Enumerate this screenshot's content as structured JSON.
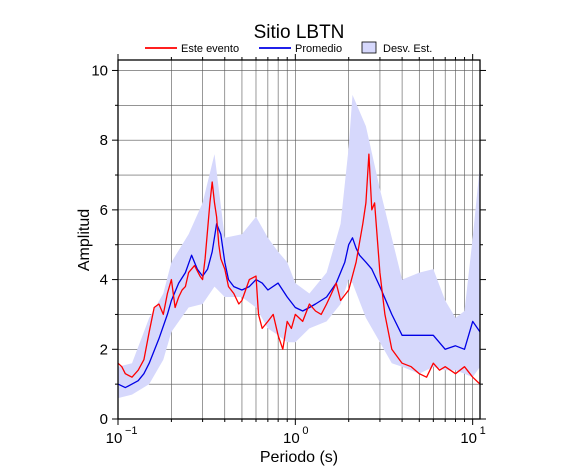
{
  "chart_data": {
    "type": "line",
    "title": "Sitio LBTN",
    "xlabel": "Periodo (s)",
    "ylabel": "Amplitud",
    "xscale": "log",
    "xlim": [
      0.1,
      11
    ],
    "ylim": [
      0,
      10.3
    ],
    "grid": true,
    "legend_position": "top",
    "x_ticks": [
      {
        "value": 0.1,
        "mantissa": "10",
        "exp": "−1"
      },
      {
        "value": 1,
        "mantissa": "10",
        "exp": "0"
      },
      {
        "value": 10,
        "mantissa": "10",
        "exp": "1"
      }
    ],
    "y_ticks": [
      {
        "value": 0,
        "label": "0"
      },
      {
        "value": 2,
        "label": "2"
      },
      {
        "value": 4,
        "label": "4"
      },
      {
        "value": 6,
        "label": "6"
      },
      {
        "value": 8,
        "label": "8"
      },
      {
        "value": 10,
        "label": "10"
      }
    ],
    "legend": [
      {
        "label": "Este evento",
        "kind": "line",
        "color": "#ff0000"
      },
      {
        "label": "Promedio",
        "kind": "line",
        "color": "#0000e6"
      },
      {
        "label": "Desv. Est.",
        "kind": "band",
        "color": "#d6d8fc"
      }
    ],
    "band": {
      "name": "Desv. Est.",
      "color": "#d6d8fc",
      "x": [
        0.1,
        0.12,
        0.15,
        0.18,
        0.2,
        0.25,
        0.3,
        0.35,
        0.4,
        0.5,
        0.6,
        0.7,
        0.8,
        0.9,
        1.0,
        1.2,
        1.5,
        1.8,
        2.0,
        2.1,
        2.5,
        3.0,
        3.5,
        4.0,
        5.0,
        6.0,
        7.0,
        8.0,
        9.0,
        10.0,
        11.0
      ],
      "upper": [
        1.5,
        1.6,
        2.9,
        3.6,
        4.5,
        5.3,
        6.2,
        7.6,
        5.2,
        5.3,
        5.8,
        5.2,
        4.8,
        4.5,
        3.9,
        3.6,
        4.2,
        5.6,
        7.8,
        9.3,
        8.4,
        6.6,
        5.2,
        4.0,
        4.2,
        4.3,
        3.4,
        2.9,
        3.1,
        5.2,
        7.3
      ],
      "lower": [
        0.6,
        0.7,
        1.0,
        1.7,
        2.5,
        3.2,
        3.3,
        3.8,
        3.5,
        3.5,
        3.2,
        2.6,
        2.4,
        2.2,
        2.2,
        2.6,
        2.8,
        3.3,
        4.0,
        3.9,
        2.9,
        2.2,
        1.6,
        1.5,
        1.3,
        1.5,
        1.4,
        1.4,
        1.3,
        1.2,
        1.5
      ]
    },
    "series": [
      {
        "name": "Este evento",
        "color": "#ff0000",
        "x": [
          0.1,
          0.105,
          0.11,
          0.12,
          0.13,
          0.14,
          0.15,
          0.16,
          0.17,
          0.18,
          0.19,
          0.2,
          0.21,
          0.22,
          0.23,
          0.24,
          0.25,
          0.27,
          0.29,
          0.3,
          0.31,
          0.33,
          0.34,
          0.35,
          0.36,
          0.37,
          0.38,
          0.4,
          0.42,
          0.45,
          0.48,
          0.5,
          0.55,
          0.6,
          0.62,
          0.65,
          0.7,
          0.75,
          0.8,
          0.85,
          0.9,
          0.95,
          1.0,
          1.1,
          1.2,
          1.3,
          1.4,
          1.5,
          1.6,
          1.7,
          1.8,
          2.0,
          2.2,
          2.4,
          2.5,
          2.6,
          2.7,
          2.8,
          3.0,
          3.2,
          3.5,
          4.0,
          4.5,
          5.0,
          5.5,
          6.0,
          6.5,
          7.0,
          8.0,
          9.0,
          10.0,
          11.0
        ],
        "y": [
          1.6,
          1.5,
          1.3,
          1.2,
          1.4,
          1.7,
          2.5,
          3.2,
          3.3,
          3.0,
          3.6,
          4.0,
          3.2,
          3.5,
          3.7,
          3.8,
          4.2,
          4.4,
          4.1,
          4.0,
          4.6,
          6.2,
          6.8,
          6.2,
          5.8,
          5.0,
          4.6,
          4.3,
          3.8,
          3.6,
          3.3,
          3.4,
          4.0,
          4.1,
          3.0,
          2.6,
          2.8,
          3.0,
          2.4,
          2.0,
          2.8,
          2.6,
          3.0,
          2.8,
          3.3,
          3.1,
          3.0,
          3.3,
          3.6,
          3.9,
          3.4,
          3.7,
          4.5,
          5.6,
          6.2,
          7.6,
          6.0,
          6.2,
          4.2,
          3.0,
          2.0,
          1.6,
          1.5,
          1.3,
          1.2,
          1.6,
          1.4,
          1.5,
          1.3,
          1.5,
          1.2,
          1.0
        ]
      },
      {
        "name": "Promedio",
        "color": "#0000e6",
        "x": [
          0.1,
          0.11,
          0.12,
          0.13,
          0.14,
          0.15,
          0.17,
          0.19,
          0.2,
          0.22,
          0.24,
          0.26,
          0.28,
          0.3,
          0.32,
          0.34,
          0.36,
          0.38,
          0.4,
          0.42,
          0.45,
          0.5,
          0.55,
          0.6,
          0.65,
          0.7,
          0.8,
          0.9,
          1.0,
          1.1,
          1.2,
          1.3,
          1.5,
          1.7,
          1.9,
          2.0,
          2.1,
          2.2,
          2.3,
          2.5,
          2.7,
          3.0,
          3.5,
          4.0,
          5.0,
          6.0,
          7.0,
          8.0,
          9.0,
          10.0,
          11.0
        ],
        "y": [
          1.0,
          0.9,
          1.0,
          1.1,
          1.3,
          1.6,
          2.3,
          3.0,
          3.4,
          3.9,
          4.2,
          4.7,
          4.3,
          4.1,
          4.3,
          4.8,
          5.6,
          5.3,
          4.5,
          4.0,
          3.8,
          3.7,
          3.8,
          4.0,
          3.9,
          3.7,
          3.9,
          3.5,
          3.2,
          3.1,
          3.2,
          3.3,
          3.5,
          3.9,
          4.5,
          5.0,
          5.2,
          4.9,
          4.7,
          4.5,
          4.3,
          3.8,
          3.0,
          2.4,
          2.4,
          2.4,
          2.0,
          2.1,
          2.0,
          2.8,
          2.5
        ]
      }
    ]
  }
}
